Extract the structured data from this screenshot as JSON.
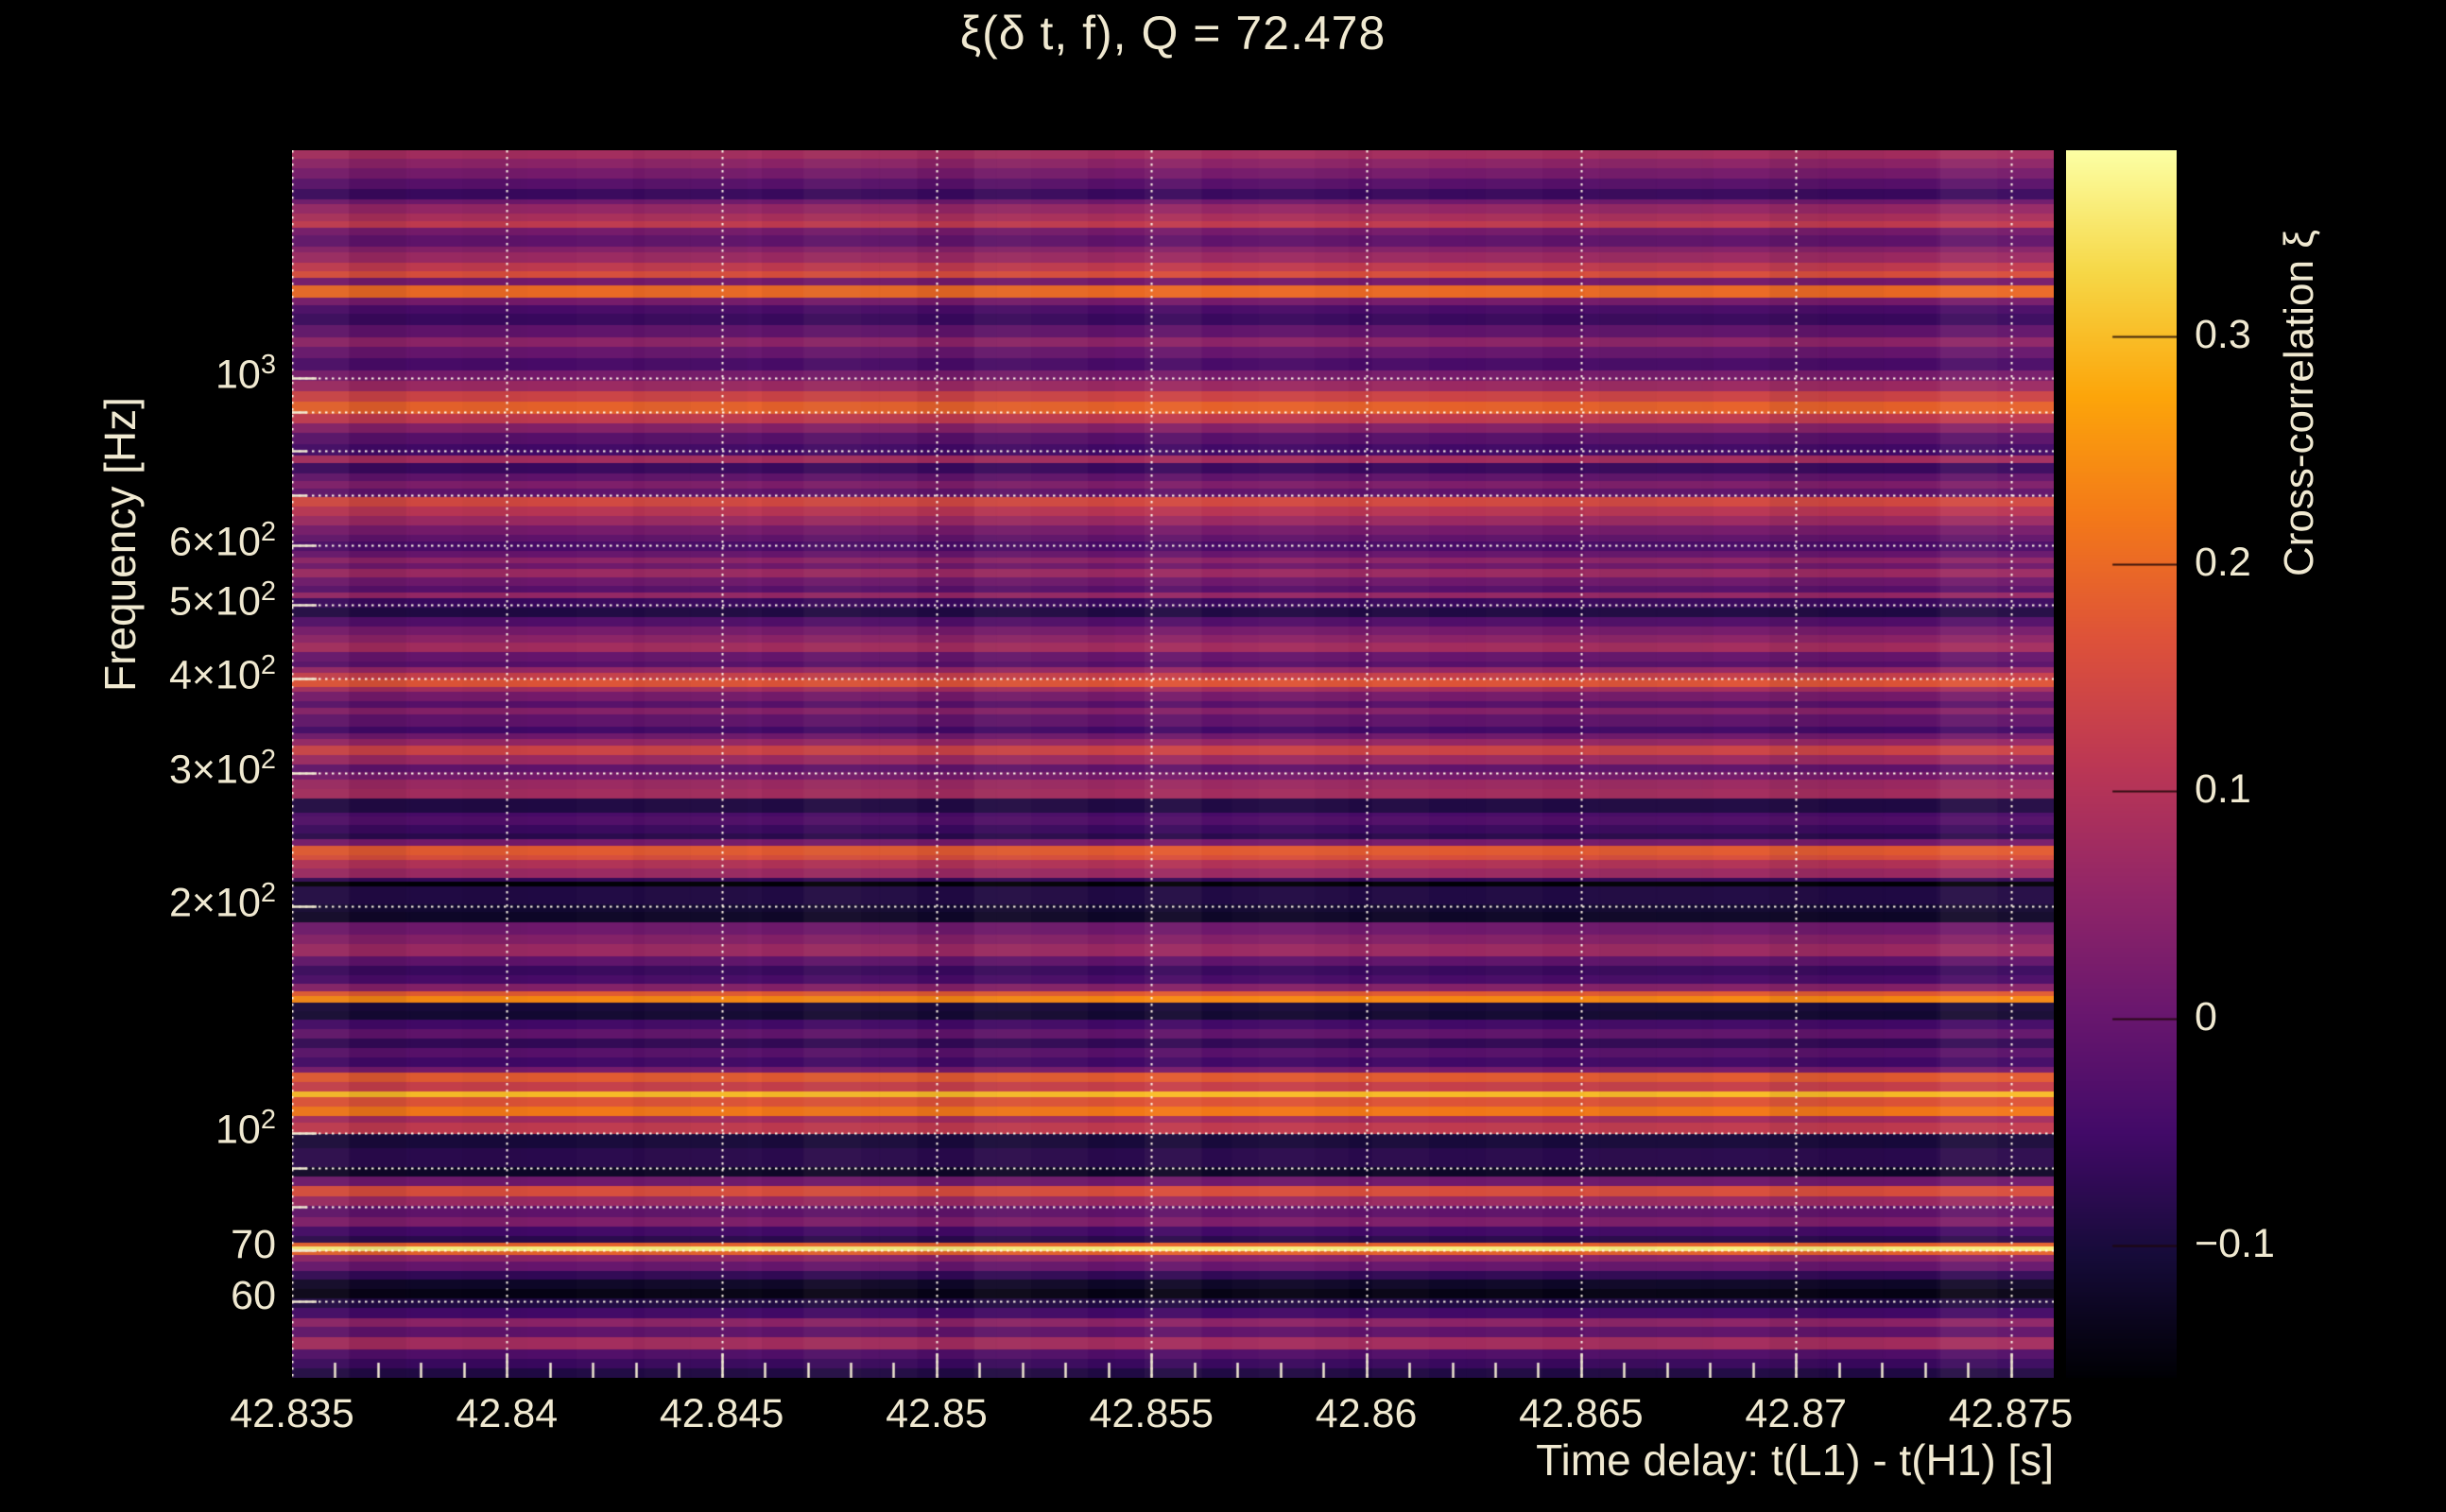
{
  "title": "ξ(δ t, f), Q = 72.478",
  "axes": {
    "x_label": "Time delay: t(L1) - t(H1) [s]",
    "y_label": "Frequency [Hz]",
    "colorbar_label": "Cross-correlation ξ"
  },
  "colors": {
    "background": "#000000",
    "text": "#f0e9d1",
    "grid": "#fff8e8",
    "tick": "#f0e9d1"
  },
  "chart_data": {
    "type": "heatmap",
    "title": "ξ(δ t, f), Q = 72.478",
    "xlabel": "Time delay: t(L1) - t(H1) [s]",
    "ylabel": "Frequency [Hz]",
    "xlim": [
      42.835,
      42.876
    ],
    "ylim": [
      47.5,
      2000
    ],
    "yscale": "log",
    "grid": "both, dotted, white",
    "x_ticks": [
      {
        "value": 42.835,
        "label": "42.835"
      },
      {
        "value": 42.84,
        "label": "42.84"
      },
      {
        "value": 42.845,
        "label": "42.845"
      },
      {
        "value": 42.85,
        "label": "42.85"
      },
      {
        "value": 42.855,
        "label": "42.855"
      },
      {
        "value": 42.86,
        "label": "42.86"
      },
      {
        "value": 42.865,
        "label": "42.865"
      },
      {
        "value": 42.87,
        "label": "42.87"
      },
      {
        "value": 42.875,
        "label": "42.875"
      }
    ],
    "x_minor_tick_step": 0.001,
    "y_ticks": [
      {
        "value": 1000,
        "base": "10",
        "exp": "3"
      },
      {
        "value": 600,
        "base": "6×10",
        "exp": "2"
      },
      {
        "value": 500,
        "base": "5×10",
        "exp": "2"
      },
      {
        "value": 400,
        "base": "4×10",
        "exp": "2"
      },
      {
        "value": 300,
        "base": "3×10",
        "exp": "2"
      },
      {
        "value": 200,
        "base": "2×10",
        "exp": "2"
      },
      {
        "value": 100,
        "base": "10",
        "exp": "2"
      },
      {
        "value": 70,
        "base": "70",
        "exp": ""
      },
      {
        "value": 60,
        "base": "60",
        "exp": ""
      }
    ],
    "y_gridline_freqs": [
      1000,
      900,
      800,
      700,
      600,
      500,
      400,
      300,
      200,
      100,
      90,
      80,
      70,
      60
    ],
    "colorbar": {
      "label": "Cross-correlation ξ",
      "vmin": -0.158,
      "vmax": 0.382,
      "ticks": [
        {
          "value": 0.3,
          "label": "0.3"
        },
        {
          "value": 0.2,
          "label": "0.2"
        },
        {
          "value": 0.1,
          "label": "0.1"
        },
        {
          "value": 0,
          "label": "0"
        },
        {
          "value": -0.1,
          "label": "−0.1"
        }
      ],
      "colormap": "inferno",
      "colormap_stops": [
        "#000004",
        "#160b39",
        "#420a68",
        "#6a176e",
        "#932667",
        "#bc3754",
        "#dd513a",
        "#f37819",
        "#fca50a",
        "#f6d746",
        "#fcffa4"
      ]
    },
    "rows_note": "cross-correlation ξ per frequency band, top (2000 Hz) to bottom (47.5 Hz); value nearly constant vs time delay",
    "rows": [
      [
        9,
        0.08
      ],
      [
        10,
        0.05
      ],
      [
        11,
        0.02
      ],
      [
        11,
        -0.02
      ],
      [
        11,
        -0.06
      ],
      [
        5,
        0.01
      ],
      [
        10,
        0.06
      ],
      [
        8,
        0.09
      ],
      [
        7,
        0.12
      ],
      [
        8,
        0.02
      ],
      [
        12,
        -0.01
      ],
      [
        7,
        0.04
      ],
      [
        11,
        0.07
      ],
      [
        9,
        0.12
      ],
      [
        7,
        0.16
      ],
      [
        8,
        0.02
      ],
      [
        13,
        0.2
      ],
      [
        8,
        0.02
      ],
      [
        9,
        -0.04
      ],
      [
        12,
        -0.06
      ],
      [
        13,
        -0.01
      ],
      [
        10,
        0.05
      ],
      [
        12,
        0.0
      ],
      [
        13,
        -0.04
      ],
      [
        11,
        0.02
      ],
      [
        11,
        0.07
      ],
      [
        11,
        0.14
      ],
      [
        13,
        0.19
      ],
      [
        10,
        0.12
      ],
      [
        10,
        0.04
      ],
      [
        12,
        -0.02
      ],
      [
        12,
        -0.05
      ],
      [
        9,
        0.08
      ],
      [
        11,
        -0.06
      ],
      [
        8,
        -0.01
      ],
      [
        8,
        0.03
      ],
      [
        9,
        -0.01
      ],
      [
        10,
        0.15
      ],
      [
        10,
        0.11
      ],
      [
        10,
        0.07
      ],
      [
        10,
        0.02
      ],
      [
        7,
        -0.01
      ],
      [
        10,
        -0.04
      ],
      [
        7,
        0.0
      ],
      [
        6,
        0.05
      ],
      [
        6,
        0.01
      ],
      [
        9,
        0.07
      ],
      [
        9,
        0.01
      ],
      [
        7,
        -0.02
      ],
      [
        6,
        0.06
      ],
      [
        10,
        -0.06
      ],
      [
        10,
        -0.09
      ],
      [
        10,
        -0.03
      ],
      [
        9,
        0.02
      ],
      [
        8,
        0.05
      ],
      [
        10,
        0.08
      ],
      [
        10,
        0.0
      ],
      [
        7,
        -0.02
      ],
      [
        6,
        0.06
      ],
      [
        7,
        0.13
      ],
      [
        8,
        0.17
      ],
      [
        5,
        0.08
      ],
      [
        10,
        0.02
      ],
      [
        7,
        -0.02
      ],
      [
        7,
        0.04
      ],
      [
        13,
        -0.01
      ],
      [
        7,
        -0.05
      ],
      [
        6,
        0.01
      ],
      [
        7,
        0.06
      ],
      [
        10,
        0.14
      ],
      [
        10,
        0.07
      ],
      [
        8,
        -0.01
      ],
      [
        8,
        0.02
      ],
      [
        10,
        0.07
      ],
      [
        10,
        0.08
      ],
      [
        15,
        -0.09
      ],
      [
        4,
        -0.04
      ],
      [
        9,
        -0.03
      ],
      [
        9,
        -0.06
      ],
      [
        6,
        -0.08
      ],
      [
        7,
        0.02
      ],
      [
        10,
        0.18
      ],
      [
        5,
        0.16
      ],
      [
        10,
        0.1
      ],
      [
        10,
        0.07
      ],
      [
        4,
        -0.07
      ],
      [
        5,
        -0.155
      ],
      [
        14,
        -0.09
      ],
      [
        5,
        -0.09
      ],
      [
        8,
        -0.11
      ],
      [
        11,
        -0.12
      ],
      [
        13,
        0.01
      ],
      [
        10,
        0.04
      ],
      [
        13,
        0.07
      ],
      [
        10,
        -0.01
      ],
      [
        10,
        -0.06
      ],
      [
        9,
        -0.04
      ],
      [
        8,
        0.04
      ],
      [
        5,
        0.18
      ],
      [
        7,
        0.24
      ],
      [
        9,
        -0.1
      ],
      [
        9,
        -0.11
      ],
      [
        10,
        -0.05
      ],
      [
        10,
        -0.01
      ],
      [
        10,
        -0.07
      ],
      [
        10,
        -0.02
      ],
      [
        10,
        -0.05
      ],
      [
        7,
        0.02
      ],
      [
        10,
        0.18
      ],
      [
        10,
        0.13
      ],
      [
        6,
        0.3
      ],
      [
        10,
        0.17
      ],
      [
        10,
        0.22
      ],
      [
        7,
        0.08
      ],
      [
        12,
        0.12
      ],
      [
        15,
        -0.1
      ],
      [
        10,
        -0.08
      ],
      [
        10,
        -0.08
      ],
      [
        10,
        -0.12
      ],
      [
        10,
        0.01
      ],
      [
        11,
        0.16
      ],
      [
        10,
        0.07
      ],
      [
        12,
        -0.01
      ],
      [
        10,
        0.03
      ],
      [
        10,
        -0.05
      ],
      [
        7,
        -0.08
      ],
      [
        4,
        0.19
      ],
      [
        5,
        0.36
      ],
      [
        4,
        0.19
      ],
      [
        7,
        0.05
      ],
      [
        10,
        0.0
      ],
      [
        10,
        -0.07
      ],
      [
        10,
        -0.12
      ],
      [
        10,
        -0.14
      ],
      [
        10,
        -0.09
      ],
      [
        11,
        -0.05
      ],
      [
        9,
        0.05
      ],
      [
        11,
        -0.01
      ],
      [
        13,
        0.08
      ],
      [
        10,
        -0.03
      ],
      [
        10,
        -0.06
      ],
      [
        10,
        -0.09
      ]
    ]
  }
}
